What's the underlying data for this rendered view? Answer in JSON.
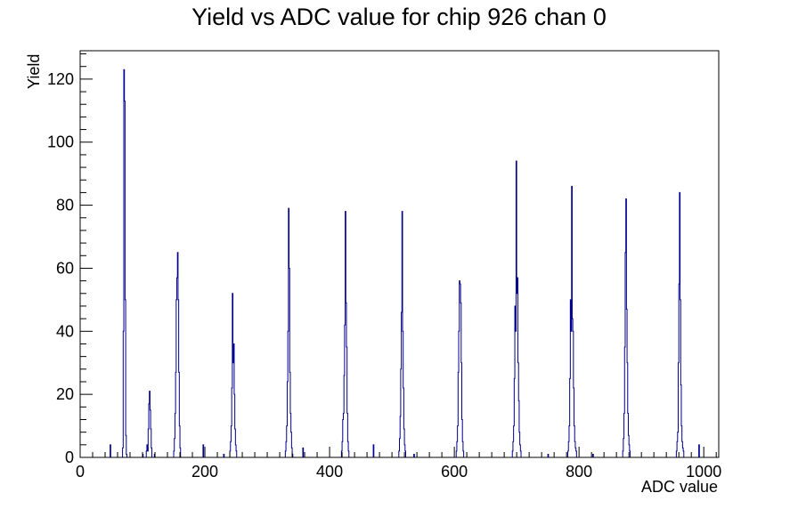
{
  "chart_data": {
    "type": "bar",
    "title": "Yield vs ADC value for chip 926 chan 0",
    "xlabel": "ADC value",
    "ylabel": "Yield",
    "xlim": [
      0,
      1024
    ],
    "ylim": [
      0,
      129
    ],
    "xticks": [
      0,
      200,
      400,
      600,
      800,
      1000
    ],
    "yticks": [
      0,
      20,
      40,
      60,
      80,
      100,
      120
    ],
    "grid": false,
    "series_color": "#00008b",
    "peaks": [
      {
        "bins": [
          68,
          69,
          70,
          71,
          72,
          73,
          74
        ],
        "values": [
          3,
          40,
          123,
          113,
          50,
          7,
          1
        ]
      },
      {
        "bins": [
          106,
          107,
          108,
          109,
          110,
          111,
          112,
          113,
          114
        ],
        "values": [
          2,
          4,
          2,
          9,
          17,
          21,
          15,
          9,
          3
        ]
      },
      {
        "bins": [
          150,
          151,
          152,
          153,
          154,
          155,
          156,
          157,
          158,
          159,
          160
        ],
        "values": [
          2,
          6,
          14,
          27,
          50,
          57,
          65,
          50,
          27,
          10,
          3
        ]
      },
      {
        "bins": [
          240,
          241,
          242,
          243,
          244,
          245,
          246,
          247,
          248,
          249,
          250
        ],
        "values": [
          2,
          5,
          10,
          22,
          52,
          30,
          36,
          20,
          9,
          4,
          2
        ]
      },
      {
        "bins": [
          329,
          330,
          331,
          332,
          333,
          334,
          335,
          336,
          337,
          338,
          339,
          340
        ],
        "values": [
          2,
          5,
          10,
          24,
          40,
          79,
          60,
          27,
          14,
          8,
          3,
          1
        ]
      },
      {
        "bins": [
          419,
          420,
          421,
          422,
          423,
          424,
          425,
          426,
          427,
          428,
          429,
          430
        ],
        "values": [
          2,
          5,
          12,
          14,
          26,
          42,
          78,
          49,
          35,
          14,
          5,
          2
        ]
      },
      {
        "bins": [
          511,
          512,
          513,
          514,
          515,
          516,
          517,
          518,
          519,
          520,
          521
        ],
        "values": [
          2,
          6,
          13,
          28,
          46,
          78,
          40,
          22,
          9,
          4,
          2
        ]
      },
      {
        "bins": [
          603,
          604,
          605,
          606,
          607,
          608,
          609,
          610,
          611,
          612,
          613,
          614
        ],
        "values": [
          2,
          5,
          10,
          27,
          40,
          56,
          55,
          49,
          30,
          12,
          5,
          2
        ]
      },
      {
        "bins": [
          693,
          694,
          695,
          696,
          697,
          698,
          699,
          700,
          701,
          702,
          703,
          704,
          705,
          706
        ],
        "values": [
          2,
          5,
          10,
          25,
          48,
          40,
          94,
          52,
          57,
          30,
          18,
          8,
          4,
          2
        ]
      },
      {
        "bins": [
          782,
          783,
          784,
          785,
          786,
          787,
          788,
          789,
          790,
          791,
          792,
          793,
          794,
          795
        ],
        "values": [
          2,
          5,
          10,
          25,
          50,
          40,
          86,
          44,
          40,
          22,
          10,
          5,
          3,
          2
        ]
      },
      {
        "bins": [
          870,
          871,
          872,
          873,
          874,
          875,
          876,
          877,
          878,
          879,
          880,
          881
        ],
        "values": [
          2,
          6,
          14,
          35,
          65,
          82,
          47,
          30,
          14,
          7,
          4,
          2
        ]
      },
      {
        "bins": [
          956,
          957,
          958,
          959,
          960,
          961,
          962,
          963,
          964,
          965,
          966,
          967
        ],
        "values": [
          2,
          5,
          8,
          30,
          55,
          84,
          50,
          23,
          10,
          5,
          3,
          2
        ]
      }
    ],
    "isolated": [
      {
        "bin": 48,
        "value": 4
      },
      {
        "bin": 100,
        "value": 1
      },
      {
        "bin": 119,
        "value": 1
      },
      {
        "bin": 197,
        "value": 4
      },
      {
        "bin": 230,
        "value": 1
      },
      {
        "bin": 357,
        "value": 3
      },
      {
        "bin": 470,
        "value": 4
      },
      {
        "bin": 535,
        "value": 1
      },
      {
        "bin": 750,
        "value": 1
      },
      {
        "bin": 822,
        "value": 1
      },
      {
        "bin": 992,
        "value": 4
      }
    ]
  }
}
